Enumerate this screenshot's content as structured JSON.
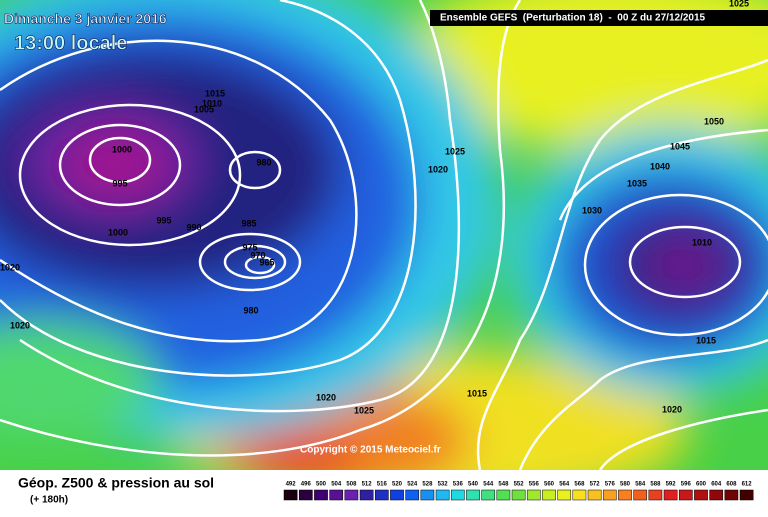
{
  "header": {
    "date": "Dimanche 3 janvier 2016",
    "time": "13:00 locale",
    "model": "Ensemble GEFS  (Perturbation 18)  -  00 Z du 27/12/2015"
  },
  "map": {
    "isobar_labels": [
      1015,
      1010,
      1005,
      1000,
      995,
      995,
      990,
      1000,
      980,
      985,
      975,
      970,
      965,
      980,
      1020,
      1020,
      1020,
      1025,
      1015,
      1025,
      1020,
      1030,
      1035,
      1040,
      1045,
      1050,
      1010,
      1015,
      1020,
      1025
    ],
    "copyright": "Copyright © 2015 Meteociel.fr"
  },
  "footer": {
    "title": "Géop. Z500 & pression au sol",
    "lead": "(+ 180h)"
  },
  "legend": {
    "labels": [
      492,
      496,
      500,
      504,
      508,
      512,
      516,
      520,
      524,
      528,
      532,
      536,
      540,
      544,
      548,
      552,
      556,
      560,
      564,
      568,
      572,
      576,
      580,
      584,
      588,
      592,
      596,
      600,
      604,
      608,
      612
    ]
  }
}
